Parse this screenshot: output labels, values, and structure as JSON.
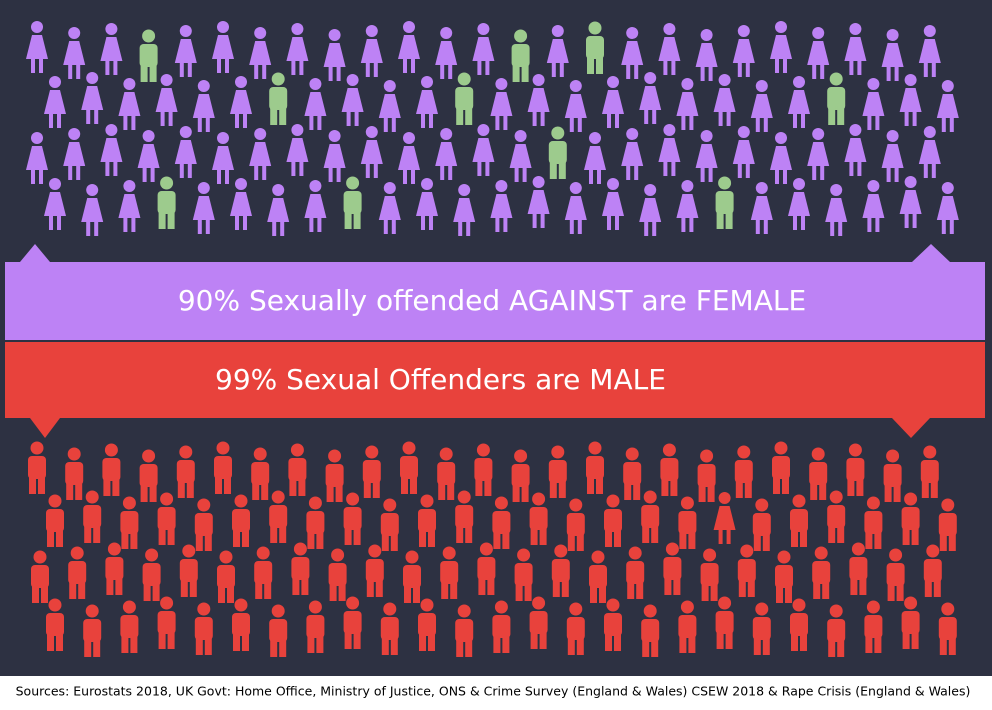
{
  "banner_top": {
    "text": "90%  Sexually offended AGAINST are FEMALE"
  },
  "banner_bottom": {
    "text": "99% Sexual Offenders are MALE"
  },
  "footer": {
    "sources": "Sources: Eurostats 2018, UK Govt: Home Office, Ministry of Justice, ONS & Crime Survey (England & Wales) CSEW 2018 & Rape Crisis (England & Wales)"
  }
}
